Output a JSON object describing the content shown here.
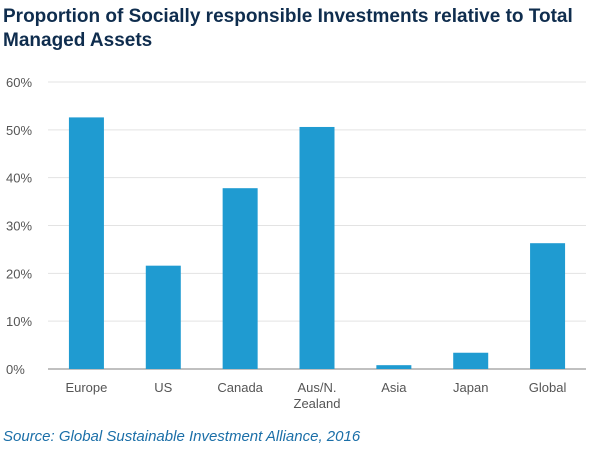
{
  "chart_data": {
    "type": "bar",
    "title": "Proportion of Socially responsible Investments relative to Total Managed Assets",
    "categories": [
      "Europe",
      "US",
      "Canada",
      "Aus/N. Zealand",
      "Asia",
      "Japan",
      "Global"
    ],
    "category_lines": [
      [
        "Europe"
      ],
      [
        "US"
      ],
      [
        "Canada"
      ],
      [
        "Aus/N.",
        "Zealand"
      ],
      [
        "Asia"
      ],
      [
        "Japan"
      ],
      [
        "Global"
      ]
    ],
    "values": [
      52.6,
      21.6,
      37.8,
      50.6,
      0.8,
      3.4,
      26.3
    ],
    "ylim": [
      0,
      60
    ],
    "yticks": [
      0,
      10,
      20,
      30,
      40,
      50,
      60
    ],
    "ytick_labels": [
      "0%",
      "10%",
      "20%",
      "30%",
      "40%",
      "50%",
      "60%"
    ],
    "xlabel": "",
    "ylabel": "",
    "grid": true,
    "legend": "none",
    "bar_color": "#1f9bd1",
    "source": "Source: Global Sustainable Investment Alliance, 2016"
  }
}
